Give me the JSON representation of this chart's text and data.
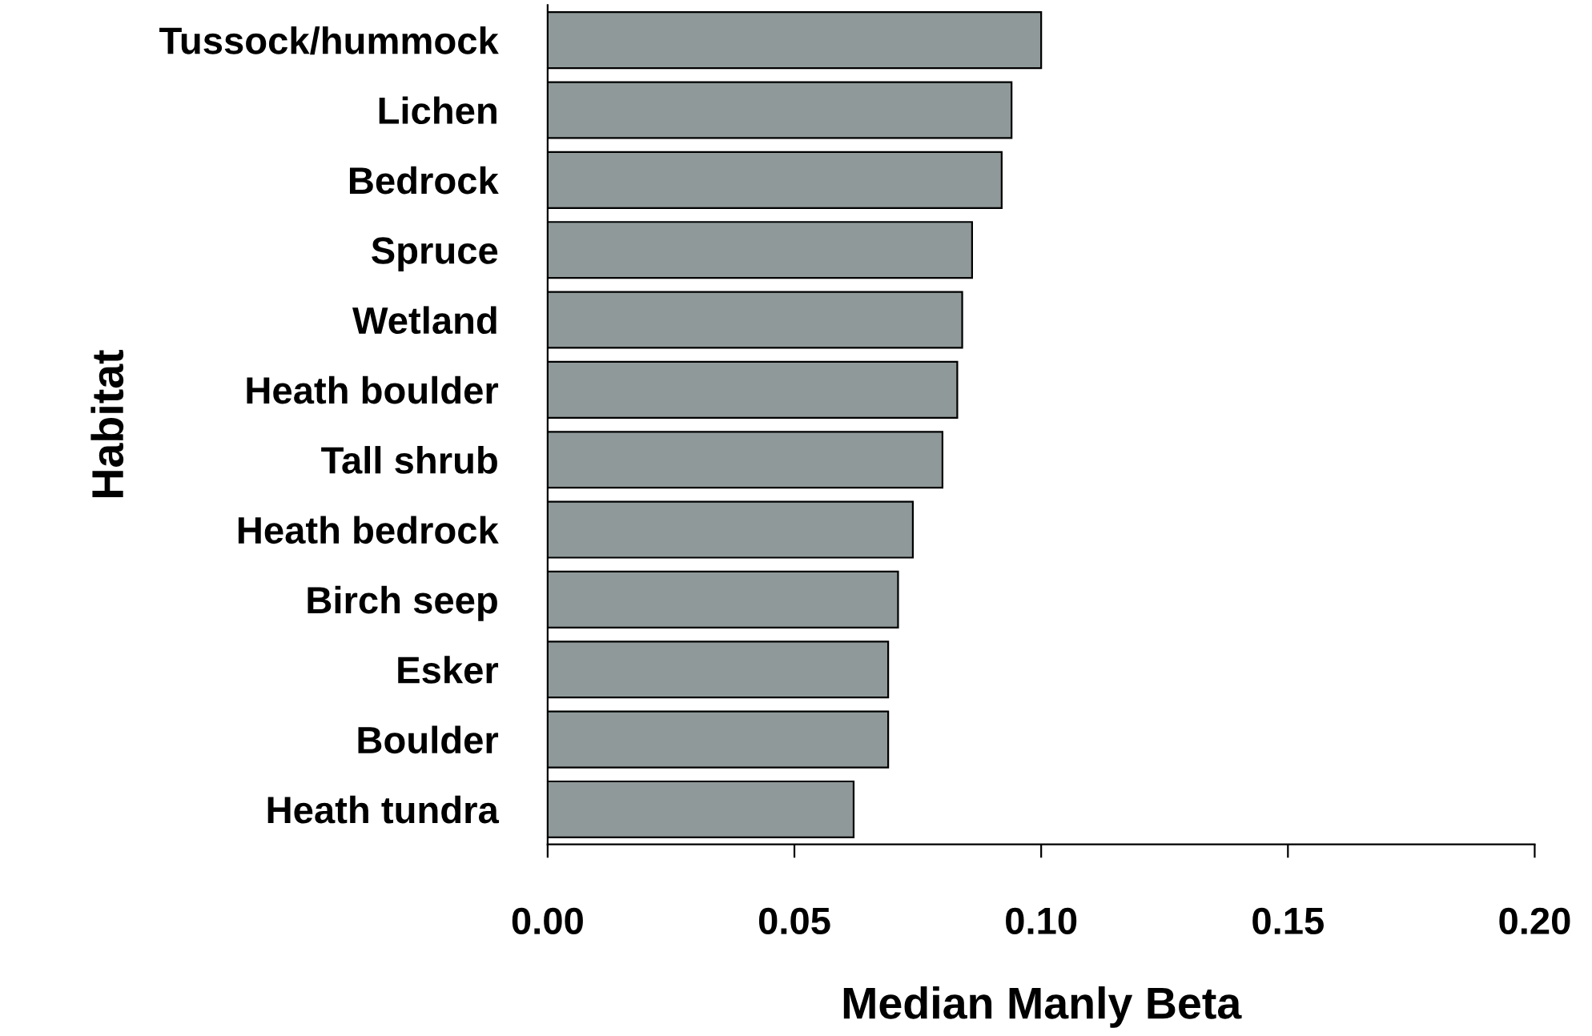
{
  "chart_data": {
    "type": "bar",
    "orientation": "horizontal",
    "xlabel": "Median Manly Beta",
    "ylabel": "Habitat",
    "categories": [
      "Tussock/hummock",
      "Lichen",
      "Bedrock",
      "Spruce",
      "Wetland",
      "Heath boulder",
      "Tall shrub",
      "Heath bedrock",
      "Birch seep",
      "Esker",
      "Boulder",
      "Heath tundra"
    ],
    "values": [
      0.1,
      0.094,
      0.092,
      0.086,
      0.084,
      0.083,
      0.08,
      0.074,
      0.071,
      0.069,
      0.069,
      0.062
    ],
    "color": "#8f9999",
    "xlim": [
      0,
      0.2
    ],
    "xticks": [
      {
        "value": 0,
        "label": "0.00"
      },
      {
        "value": 0.05,
        "label": "0.05"
      },
      {
        "value": 0.1,
        "label": "0.10"
      },
      {
        "value": 0.15,
        "label": "0.15"
      },
      {
        "value": 0.2,
        "label": "0.20"
      }
    ],
    "grid": false,
    "legend": false
  }
}
